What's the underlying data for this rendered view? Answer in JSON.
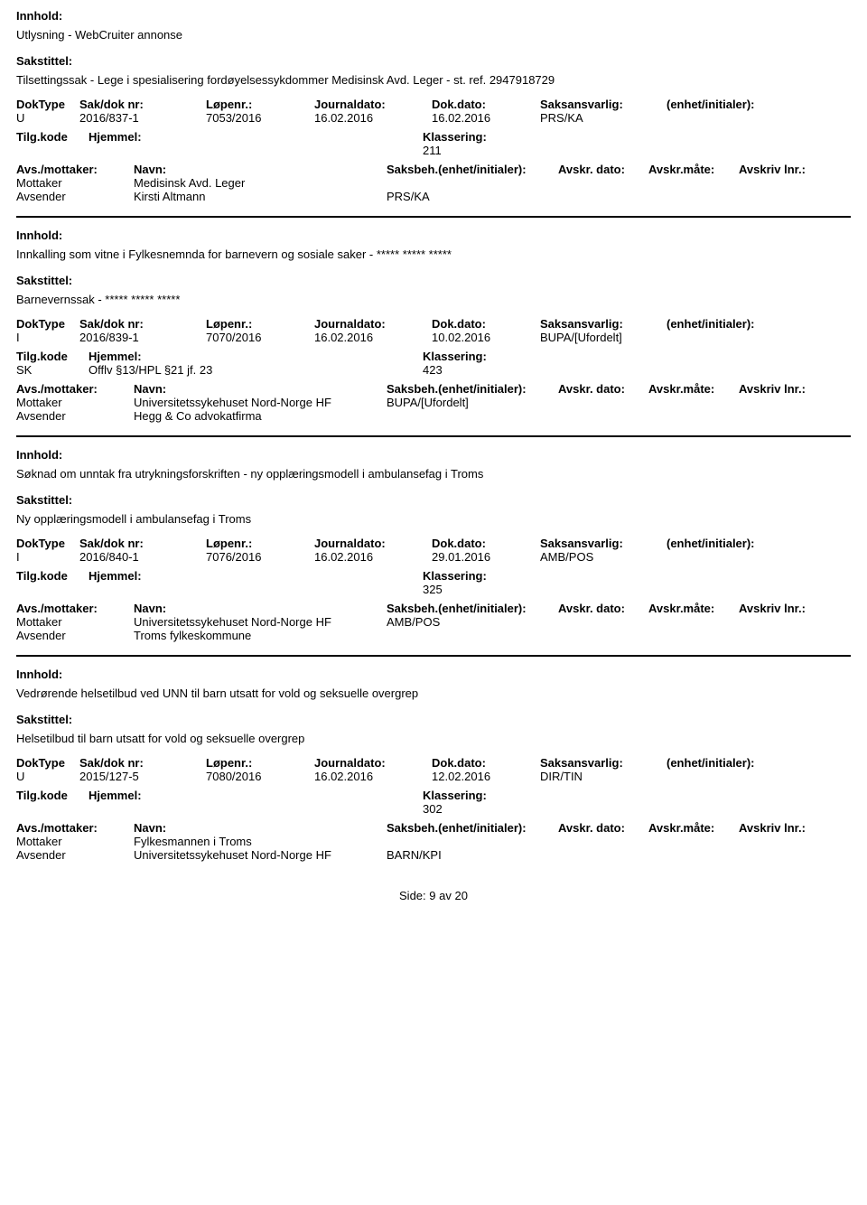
{
  "labels": {
    "innhold": "Innhold:",
    "sakstittel": "Sakstittel:",
    "doktype": "DokType",
    "sakdok": "Sak/dok nr:",
    "lopenr": "Løpenr.:",
    "jdato": "Journaldato:",
    "dokdato": "Dok.dato:",
    "saksansvarlig": "Saksansvarlig:",
    "enhet": "(enhet/initialer):",
    "tilgkode": "Tilg.kode",
    "hjemmel": "Hjemmel:",
    "klassering": "Klassering:",
    "avsmottaker": "Avs./mottaker:",
    "navn": "Navn:",
    "saksbeh": "Saksbeh.(enhet/initialer):",
    "avskrdato": "Avskr. dato:",
    "avskrmate": "Avskr.måte:",
    "avskrlnr": "Avskriv lnr.:",
    "mottaker": "Mottaker",
    "avsender": "Avsender"
  },
  "records": [
    {
      "innhold": "Utlysning - WebCruiter annonse",
      "sakstittel": "Tilsettingssak - Lege i spesialisering fordøyelsessykdommer Medisinsk Avd. Leger - st. ref. 2947918729",
      "doktype": "U",
      "sakdok": "2016/837-1",
      "lopenr": "7053/2016",
      "jdato": "16.02.2016",
      "dokdato": "16.02.2016",
      "saksansvarlig": "PRS/KA",
      "enhet": "",
      "tilgkode": "",
      "hjemmel": "",
      "klassering": "211",
      "showAvsRowHeader": false,
      "parties": [
        {
          "role": "Mottaker",
          "name": "Medisinsk Avd. Leger",
          "beh": ""
        },
        {
          "role": "Avsender",
          "name": "Kirsti Altmann",
          "beh": "PRS/KA"
        }
      ]
    },
    {
      "innhold": "Innkalling som vitne i Fylkesnemnda for barnevern og sosiale saker - ***** ***** *****",
      "sakstittel": "Barnevernssak - ***** ***** *****",
      "doktype": "I",
      "sakdok": "2016/839-1",
      "lopenr": "7070/2016",
      "jdato": "16.02.2016",
      "dokdato": "10.02.2016",
      "saksansvarlig": "BUPA/[Ufordelt]",
      "enhet": "",
      "tilgkode": "SK",
      "hjemmel": "Offlv §13/HPL §21 jf. 23",
      "klassering": "423",
      "showAvsRowHeader": false,
      "parties": [
        {
          "role": "Mottaker",
          "name": "Universitetssykehuset Nord-Norge HF",
          "beh": "BUPA/[Ufordelt]"
        },
        {
          "role": "Avsender",
          "name": "Hegg & Co advokatfirma",
          "beh": ""
        }
      ]
    },
    {
      "innhold": "Søknad om unntak fra utrykningsforskriften - ny opplæringsmodell i ambulansefag i Troms",
      "sakstittel": "Ny opplæringsmodell i ambulansefag i Troms",
      "doktype": "I",
      "sakdok": "2016/840-1",
      "lopenr": "7076/2016",
      "jdato": "16.02.2016",
      "dokdato": "29.01.2016",
      "saksansvarlig": "AMB/POS",
      "enhet": "",
      "tilgkode": "",
      "hjemmel": "",
      "klassering": "325",
      "showAvsRowHeader": true,
      "parties": [
        {
          "role": "Mottaker",
          "name": "Universitetssykehuset Nord-Norge HF",
          "beh": "AMB/POS"
        },
        {
          "role": "Avsender",
          "name": "Troms fylkeskommune",
          "beh": ""
        }
      ]
    },
    {
      "innhold": "Vedrørende helsetilbud ved UNN til barn utsatt for vold og seksuelle overgrep",
      "sakstittel": "Helsetilbud til barn utsatt for vold og seksuelle overgrep",
      "doktype": "U",
      "sakdok": "2015/127-5",
      "lopenr": "7080/2016",
      "jdato": "16.02.2016",
      "dokdato": "12.02.2016",
      "saksansvarlig": "DIR/TIN",
      "enhet": "",
      "tilgkode": "",
      "hjemmel": "",
      "klassering": "302",
      "showAvsRowHeader": true,
      "parties": [
        {
          "role": "Mottaker",
          "name": "Fylkesmannen i Troms",
          "beh": ""
        },
        {
          "role": "Avsender",
          "name": "Universitetssykehuset Nord-Norge HF",
          "beh": "BARN/KPI"
        }
      ]
    }
  ],
  "footer": {
    "side": "Side:",
    "page": "9",
    "av": "av",
    "total": "20"
  }
}
